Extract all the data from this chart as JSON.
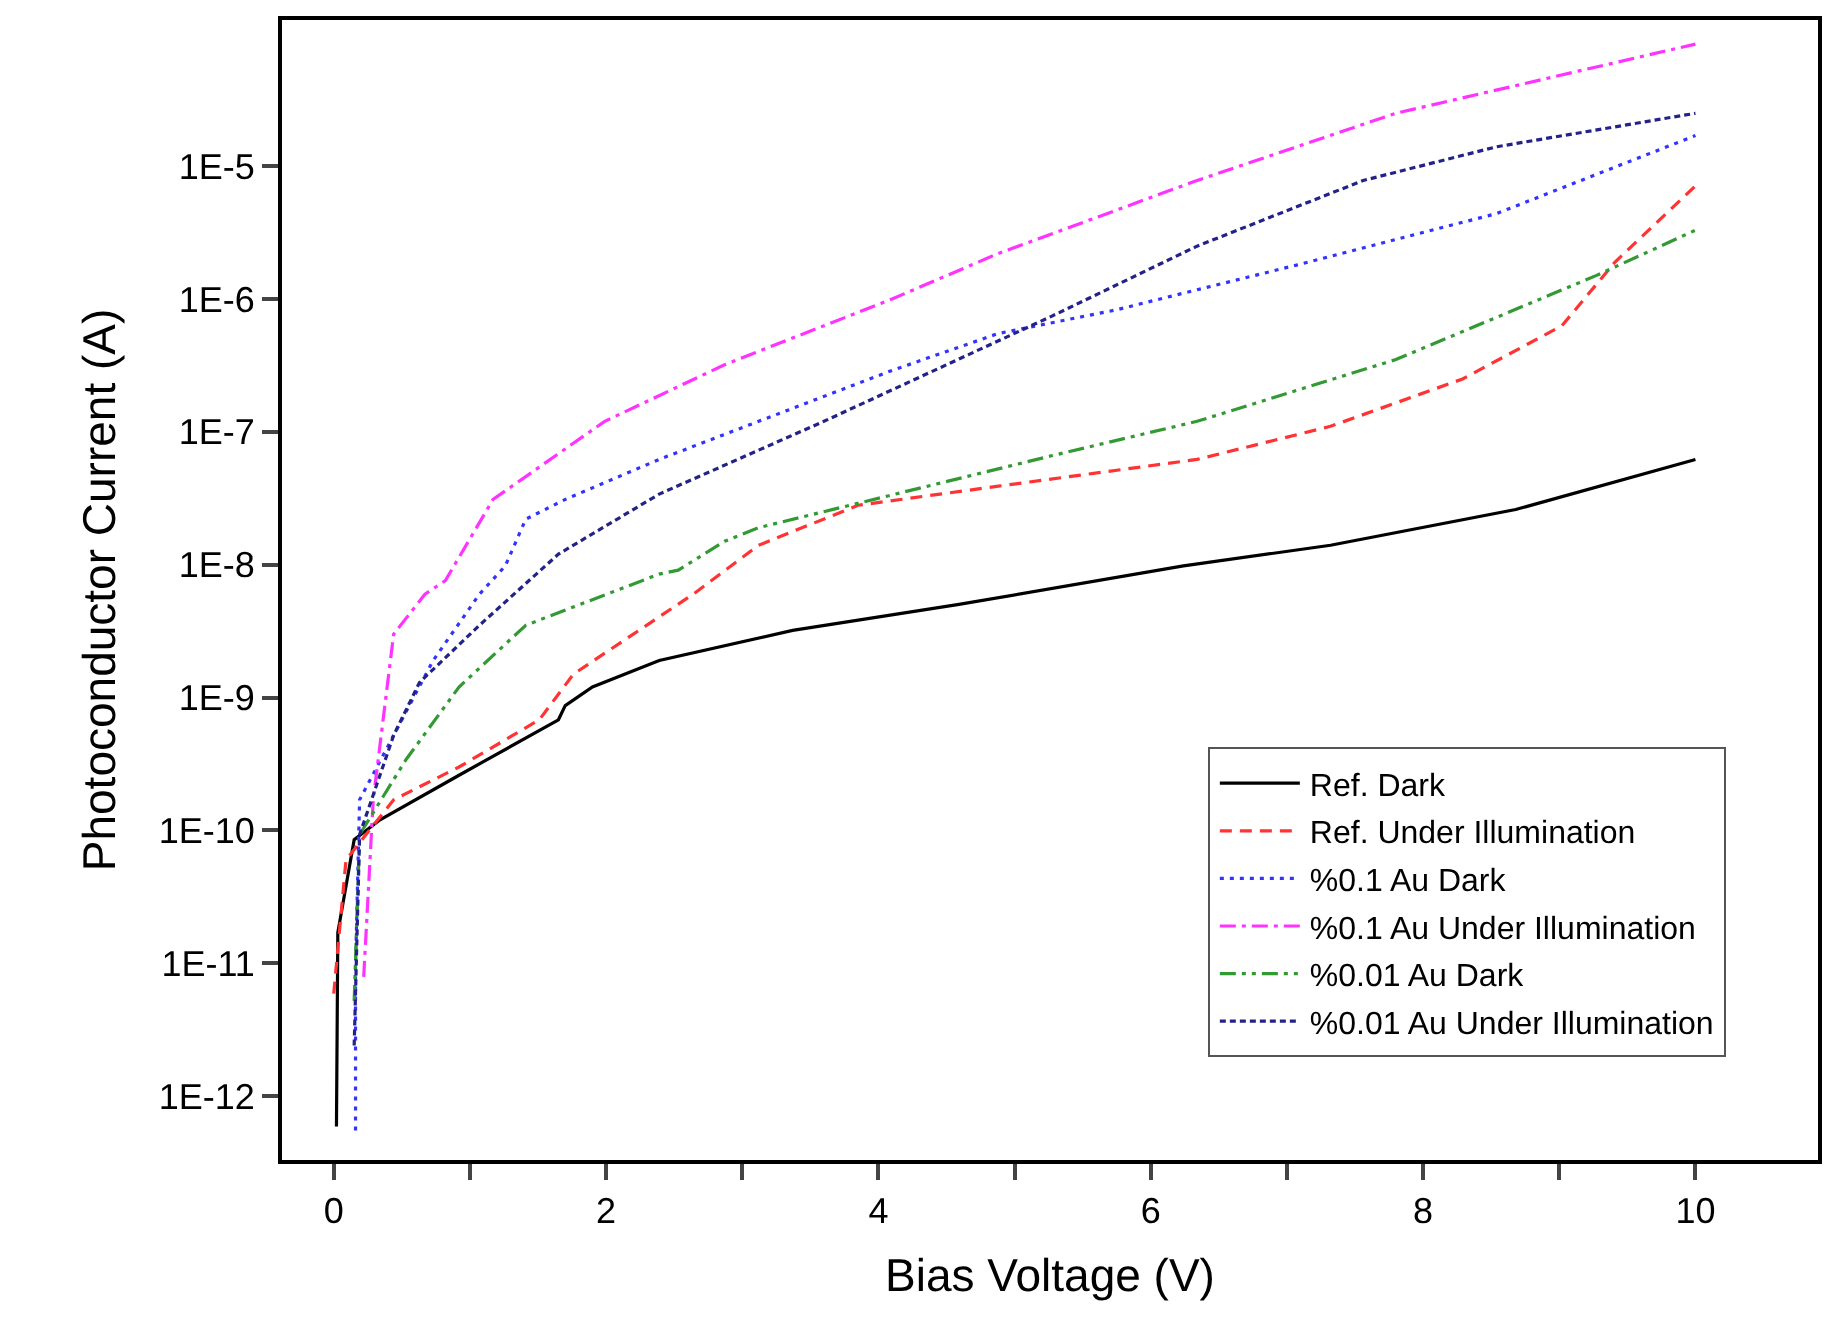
{
  "chart_data": {
    "type": "line",
    "xlabel": "Bias Voltage (V)",
    "ylabel": "Photoconductor Current (A)",
    "log": "y",
    "legend": "bottom right",
    "marker": "none",
    "xlim": [
      -0.38,
      10.9
    ],
    "xticks": [
      0,
      {
        "value": 1,
        "label": null
      },
      2,
      {
        "value": 3,
        "label": null
      },
      4,
      {
        "value": 5,
        "label": null
      },
      6,
      {
        "value": 7,
        "label": null
      },
      8,
      {
        "value": 9,
        "label": null
      },
      10
    ],
    "ylim": [
      3.3e-13,
      0.000126
    ],
    "yticks": [
      {
        "value": 1e-12,
        "label": "1E-12"
      },
      {
        "value": 1e-11,
        "label": "1E-11"
      },
      {
        "value": 1e-10,
        "label": "1E-10"
      },
      {
        "value": 1e-09,
        "label": "1E-9"
      },
      {
        "value": 1e-08,
        "label": "1E-8"
      },
      {
        "value": 1e-07,
        "label": "1E-7"
      },
      {
        "value": 1e-06,
        "label": "1E-6"
      },
      {
        "value": 1e-05,
        "label": "1E-5"
      }
    ],
    "series": [
      {
        "name": "Ref. Dark",
        "color": "#000000",
        "line_style": "solid",
        "x": [
          0.02,
          0.03,
          0.15,
          0.34,
          0.92,
          1.65,
          1.7,
          1.9,
          2.39,
          3.37,
          4.58,
          6.24,
          7.32,
          8.68,
          10
        ],
        "values": [
          5.9e-13,
          1.7e-11,
          8.5e-11,
          1.2e-10,
          2.6e-10,
          6.8e-10,
          8.7e-10,
          1.2e-09,
          1.9e-09,
          3.2e-09,
          5e-09,
          9.8e-09,
          1.4e-08,
          2.6e-08,
          6.2e-08
        ]
      },
      {
        "name": "Ref. Under Illumination",
        "color": "#ff3333",
        "line_style": "dashed",
        "x": [
          0.0,
          0.09,
          0.44,
          0.92,
          1.51,
          1.76,
          2.2,
          2.64,
          3.12,
          3.85,
          4.88,
          6.34,
          7.32,
          8.29,
          9.02,
          9.41,
          10
        ],
        "values": [
          5.9e-12,
          6e-11,
          1.7e-10,
          3e-10,
          6.8e-10,
          1.5e-09,
          3e-09,
          6e-09,
          1.4e-08,
          2.8e-08,
          3.9e-08,
          6.2e-08,
          1.1e-07,
          2.5e-07,
          6.3e-07,
          1.9e-06,
          7.1e-06
        ]
      },
      {
        "name": "%0.1 Au Dark",
        "color": "#3333ff",
        "line_style": "dotted",
        "x": [
          0.16,
          0.16,
          0.19,
          0.44,
          0.73,
          1.07,
          1.26,
          1.41,
          1.7,
          2.39,
          3.12,
          4.1,
          4.88,
          5.75,
          7.07,
          8.54,
          10
        ],
        "values": [
          5.5e-13,
          9.5e-12,
          1.7e-10,
          5.2e-10,
          1.9e-09,
          6e-09,
          9.8e-09,
          2.2e-08,
          3.1e-08,
          6.2e-08,
          1.2e-07,
          2.9e-07,
          5.5e-07,
          8.3e-07,
          1.8e-06,
          4.4e-06,
          1.7e-05
        ]
      },
      {
        "name": "%0.1 Au Under Illumination",
        "color": "#ff33ff",
        "line_style": "dashdot",
        "x": [
          0.22,
          0.29,
          0.44,
          0.67,
          0.82,
          1.17,
          1.99,
          2.87,
          4.1,
          4.88,
          6.34,
          7.8,
          10
        ],
        "values": [
          7.9e-12,
          1.7e-10,
          3e-09,
          6e-09,
          7.6e-09,
          3.1e-08,
          1.2e-07,
          3.2e-07,
          1e-06,
          2.2e-06,
          7.8e-06,
          2.5e-05,
          8.3e-05
        ]
      },
      {
        "name": "%0.01 Au Dark",
        "color": "#339933",
        "line_style": "dashdotdot",
        "x": [
          0.15,
          0.19,
          0.53,
          0.92,
          1.41,
          2.39,
          2.53,
          2.87,
          3.12,
          5.27,
          6.34,
          7.8,
          9.27,
          10
        ],
        "values": [
          5.2e-12,
          9.3e-11,
          3.4e-10,
          1.2e-09,
          3.5e-09,
          8.5e-09,
          9.1e-09,
          1.5e-08,
          1.9e-08,
          6.6e-08,
          1.2e-07,
          3.5e-07,
          1.5e-06,
          3.3e-06
        ]
      },
      {
        "name": "%0.01 Au Under Illumination",
        "color": "#222288",
        "line_style": "shortdash",
        "x": [
          0.15,
          0.19,
          0.44,
          0.63,
          1.07,
          1.65,
          2.39,
          3.6,
          5.27,
          6.34,
          7.56,
          8.54,
          10
        ],
        "values": [
          2.4e-12,
          9.3e-11,
          5.2e-10,
          1.3e-09,
          3.5e-09,
          1.2e-08,
          3.4e-08,
          1.2e-07,
          7.4e-07,
          2.5e-06,
          7.8e-06,
          1.4e-05,
          2.5e-05
        ]
      }
    ]
  }
}
